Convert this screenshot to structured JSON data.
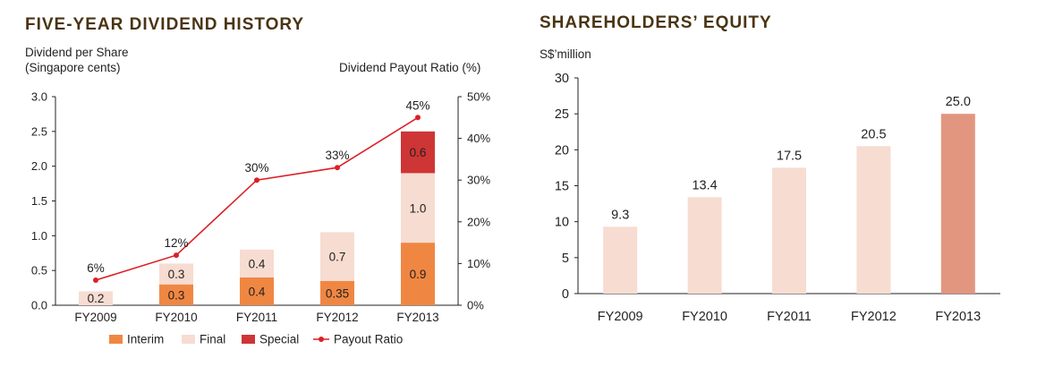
{
  "colors": {
    "title": "#4a3414",
    "interim": "#ef8743",
    "final": "#f7dcd1",
    "special": "#ce3535",
    "payout": "#dd1f26",
    "equity_bar": "#f7dcd1",
    "equity_highlight": "#e29680"
  },
  "chart_data": [
    {
      "type": "bar",
      "stacked": true,
      "title": "FIVE-YEAR DIVIDEND HISTORY",
      "ylabel_line1": "Dividend per Share",
      "ylabel_line2": "(Singapore cents)",
      "y2label": "Dividend Payout Ratio (%)",
      "categories": [
        "FY2009",
        "FY2010",
        "FY2011",
        "FY2012",
        "FY2013"
      ],
      "ylim": [
        0,
        3.0
      ],
      "yticks": [
        "0.0",
        "0.5",
        "1.0",
        "1.5",
        "2.0",
        "2.5",
        "3.0"
      ],
      "y2lim": [
        0,
        50
      ],
      "y2ticks": [
        "0%",
        "10%",
        "20%",
        "30%",
        "40%",
        "50%"
      ],
      "series": [
        {
          "name": "Interim",
          "values": [
            0,
            0.3,
            0.4,
            0.35,
            0.9
          ],
          "labels": [
            "",
            "0.3",
            "0.4",
            "0.35",
            "0.9"
          ]
        },
        {
          "name": "Final",
          "values": [
            0.2,
            0.3,
            0.4,
            0.7,
            1.0
          ],
          "labels": [
            "0.2",
            "0.3",
            "0.4",
            "0.7",
            "1.0"
          ]
        },
        {
          "name": "Special",
          "values": [
            0,
            0,
            0,
            0,
            0.6
          ],
          "labels": [
            "",
            "",
            "",
            "",
            "0.6"
          ]
        }
      ],
      "payout": {
        "name": "Payout Ratio",
        "values": [
          6,
          12,
          30,
          33,
          45
        ],
        "labels": [
          "6%",
          "12%",
          "30%",
          "33%",
          "45%"
        ]
      },
      "legend": [
        "Interim",
        "Final",
        "Special",
        "Payout Ratio"
      ],
      "legend_position": "bottom"
    },
    {
      "type": "bar",
      "title": "SHAREHOLDERS’ EQUITY",
      "ylabel": "S$’million",
      "categories": [
        "FY2009",
        "FY2010",
        "FY2011",
        "FY2012",
        "FY2013"
      ],
      "values": [
        9.3,
        13.4,
        17.5,
        20.5,
        25.0
      ],
      "labels": [
        "9.3",
        "13.4",
        "17.5",
        "20.5",
        "25.0"
      ],
      "ylim": [
        0,
        30
      ],
      "yticks": [
        "0",
        "5",
        "10",
        "15",
        "20",
        "25",
        "30"
      ]
    }
  ]
}
